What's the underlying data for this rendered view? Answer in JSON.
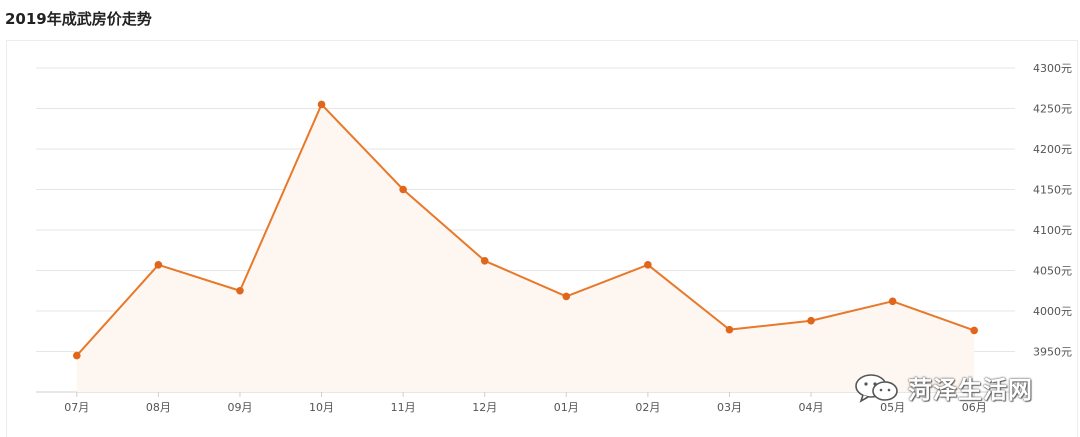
{
  "page": {
    "title": "2019年成武房价走势",
    "watermark": "菏泽生活网",
    "watermark_icon": "wechat-icon"
  },
  "colors": {
    "line": "#e8782a",
    "point": "#e0661c",
    "grid": "#e6e6e6",
    "axis_text": "#555555",
    "fill": "#fdf6f1"
  },
  "chart_data": {
    "type": "line",
    "title": "2019年成武房价走势",
    "categories": [
      "07月",
      "08月",
      "09月",
      "10月",
      "11月",
      "12月",
      "01月",
      "02月",
      "03月",
      "04月",
      "05月",
      "06月"
    ],
    "values": [
      3945,
      4057,
      4025,
      4255,
      4150,
      4062,
      4018,
      4057,
      3977,
      3988,
      4012,
      3976
    ],
    "y_ticks": [
      "3950元",
      "4000元",
      "4050元",
      "4100元",
      "4150元",
      "4200元",
      "4250元",
      "4300元"
    ],
    "ylim": [
      3900,
      4300
    ],
    "y_axis_position": "right",
    "grid": true,
    "legend": "none"
  }
}
